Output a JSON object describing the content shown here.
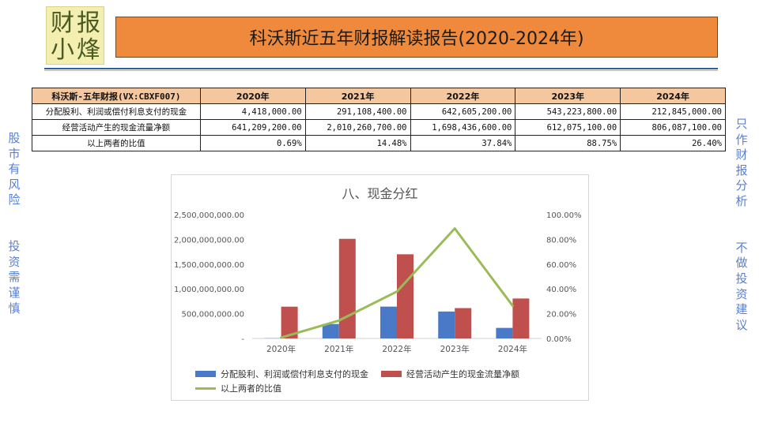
{
  "logo": {
    "chars": [
      "财",
      "报",
      "小",
      "烽"
    ]
  },
  "header": {
    "title": "科沃斯近五年财报解读报告(2020-2024年)"
  },
  "side_notes": {
    "left": "股市有风险  投资需谨慎",
    "right": "只作财报分析  不做投资建议"
  },
  "table": {
    "corner": "科沃斯-五年财报(VX:CBXF007)",
    "years": [
      "2020年",
      "2021年",
      "2022年",
      "2023年",
      "2024年"
    ],
    "rows": [
      {
        "label": "分配股利、利润或偿付利息支付的现金",
        "values": [
          "4,418,000.00",
          "291,108,400.00",
          "642,605,200.00",
          "543,223,800.00",
          "212,845,000.00"
        ]
      },
      {
        "label": "经营活动产生的现金流量净额",
        "values": [
          "641,209,200.00",
          "2,010,260,700.00",
          "1,698,436,600.00",
          "612,075,100.00",
          "806,087,100.00"
        ]
      },
      {
        "label": "以上两者的比值",
        "values": [
          "0.69%",
          "14.48%",
          "37.84%",
          "88.75%",
          "26.40%"
        ]
      }
    ]
  },
  "chart_data": {
    "type": "bar",
    "title": "八、现金分红",
    "categories": [
      "2020年",
      "2021年",
      "2022年",
      "2023年",
      "2024年"
    ],
    "series": [
      {
        "name": "分配股利、利润或偿付利息支付的现金",
        "type": "bar",
        "axis": "left",
        "color": "#4a7ac7",
        "values": [
          4418000,
          291108400,
          642605200,
          543223800,
          212845000
        ]
      },
      {
        "name": "经营活动产生的现金流量净额",
        "type": "bar",
        "axis": "left",
        "color": "#c0504d",
        "values": [
          641209200,
          2010260700,
          1698436600,
          612075100,
          806087100
        ]
      },
      {
        "name": "以上两者的比值",
        "type": "line",
        "axis": "right",
        "color": "#9bbb59",
        "values": [
          0.69,
          14.48,
          37.84,
          88.75,
          26.4
        ]
      }
    ],
    "y_left": {
      "min": 0,
      "max": 2500000000,
      "ticks": [
        "-",
        "500,000,000.00",
        "1,000,000,000.00",
        "1,500,000,000.00",
        "2,000,000,000.00",
        "2,500,000,000.00"
      ]
    },
    "y_right": {
      "min": 0,
      "max": 100,
      "ticks": [
        "0.00%",
        "20.00%",
        "40.00%",
        "60.00%",
        "80.00%",
        "100.00%"
      ]
    },
    "legend_position": "bottom",
    "grid": false
  }
}
